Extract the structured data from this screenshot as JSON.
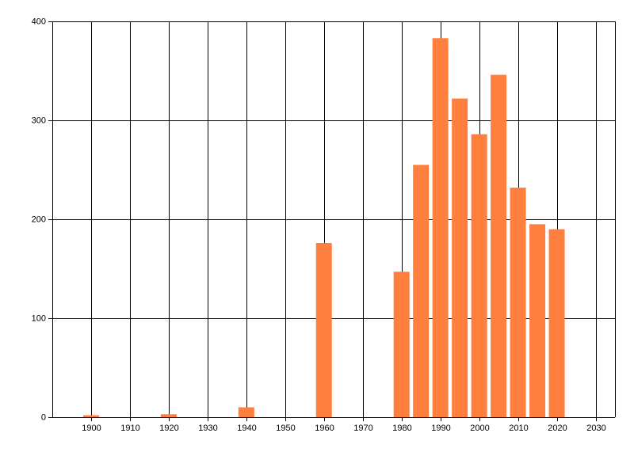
{
  "chart_data": {
    "type": "bar",
    "x": [
      1900,
      1920,
      1940,
      1960,
      1980,
      1985,
      1990,
      1995,
      2000,
      2005,
      2010,
      2015,
      2020
    ],
    "values": [
      2,
      3,
      10,
      176,
      147,
      255,
      383,
      322,
      286,
      346,
      232,
      195,
      190
    ],
    "color": "#ff7f3f",
    "xlim": [
      1890,
      2035
    ],
    "xticks": [
      1900,
      1910,
      1920,
      1930,
      1940,
      1950,
      1960,
      1970,
      1980,
      1990,
      2000,
      2010,
      2020,
      2030
    ],
    "ylim": [
      0,
      400
    ],
    "yticks": [
      0,
      100,
      200,
      300,
      400
    ],
    "grid": true
  }
}
